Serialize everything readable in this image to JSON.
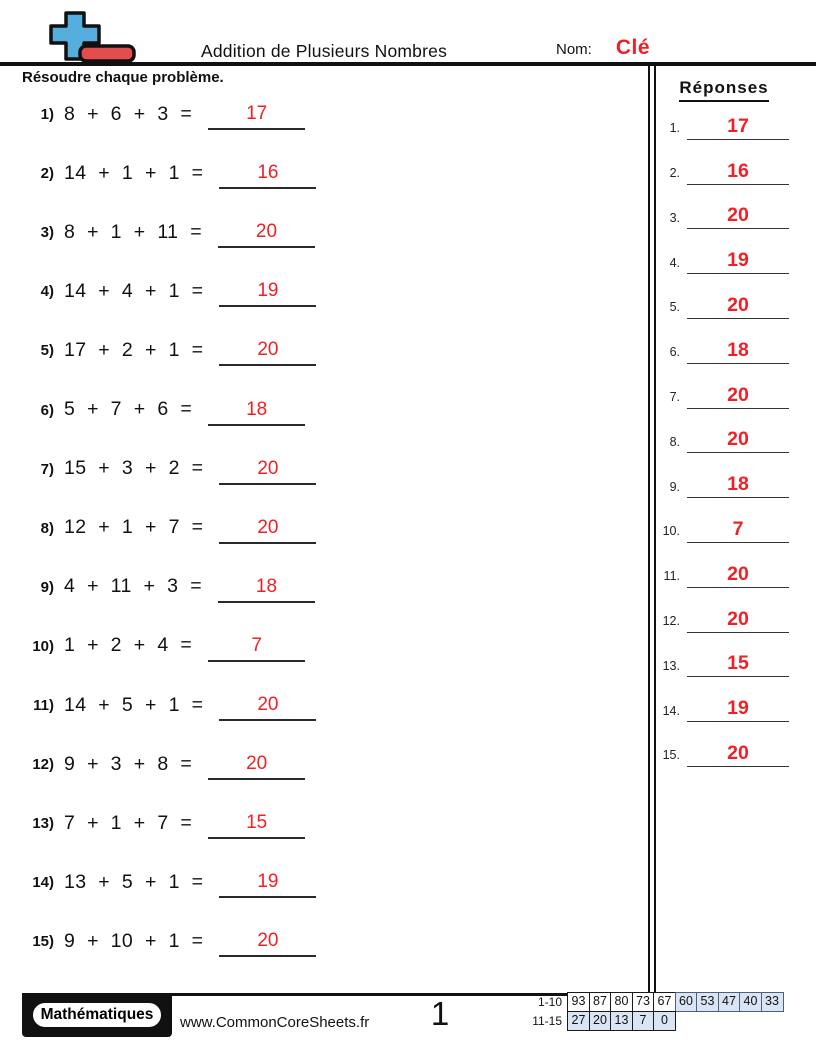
{
  "header": {
    "title": "Addition de Plusieurs Nombres",
    "name_label": "Nom:",
    "name_value": "Clé"
  },
  "instruction": "Résoudre chaque problème.",
  "problems": [
    {
      "num": "1)",
      "expression": "8 + 6 + 3 =",
      "answer": "17"
    },
    {
      "num": "2)",
      "expression": "14 + 1 + 1 =",
      "answer": "16"
    },
    {
      "num": "3)",
      "expression": "8 + 1 + 11 =",
      "answer": "20"
    },
    {
      "num": "4)",
      "expression": "14 + 4 + 1 =",
      "answer": "19"
    },
    {
      "num": "5)",
      "expression": "17 + 2 + 1 =",
      "answer": "20"
    },
    {
      "num": "6)",
      "expression": "5 + 7 + 6 =",
      "answer": "18"
    },
    {
      "num": "7)",
      "expression": "15 + 3 + 2 =",
      "answer": "20"
    },
    {
      "num": "8)",
      "expression": "12 + 1 + 7 =",
      "answer": "20"
    },
    {
      "num": "9)",
      "expression": "4 + 11 + 3 =",
      "answer": "18"
    },
    {
      "num": "10)",
      "expression": "1 + 2 + 4 =",
      "answer": "7"
    },
    {
      "num": "11)",
      "expression": "14 + 5 + 1 =",
      "answer": "20"
    },
    {
      "num": "12)",
      "expression": "9 + 3 + 8 =",
      "answer": "20"
    },
    {
      "num": "13)",
      "expression": "7 + 1 + 7 =",
      "answer": "15"
    },
    {
      "num": "14)",
      "expression": "13 + 5 + 1 =",
      "answer": "19"
    },
    {
      "num": "15)",
      "expression": "9 + 10 + 1 =",
      "answer": "20"
    }
  ],
  "answers_panel": {
    "title": "Réponses",
    "items": [
      {
        "num": "1.",
        "value": "17"
      },
      {
        "num": "2.",
        "value": "16"
      },
      {
        "num": "3.",
        "value": "20"
      },
      {
        "num": "4.",
        "value": "19"
      },
      {
        "num": "5.",
        "value": "20"
      },
      {
        "num": "6.",
        "value": "18"
      },
      {
        "num": "7.",
        "value": "20"
      },
      {
        "num": "8.",
        "value": "20"
      },
      {
        "num": "9.",
        "value": "18"
      },
      {
        "num": "10.",
        "value": "7"
      },
      {
        "num": "11.",
        "value": "20"
      },
      {
        "num": "12.",
        "value": "20"
      },
      {
        "num": "13.",
        "value": "15"
      },
      {
        "num": "14.",
        "value": "19"
      },
      {
        "num": "15.",
        "value": "20"
      }
    ]
  },
  "footer": {
    "badge": "Mathématiques",
    "website": "www.CommonCoreSheets.fr",
    "page_number": "1",
    "score_table": {
      "rows": [
        {
          "label": "1-10",
          "cells": [
            {
              "value": "93",
              "variant": "plain"
            },
            {
              "value": "87",
              "variant": "plain"
            },
            {
              "value": "80",
              "variant": "plain"
            },
            {
              "value": "73",
              "variant": "plain"
            },
            {
              "value": "67",
              "variant": "plain"
            },
            {
              "value": "60",
              "variant": "blue"
            },
            {
              "value": "53",
              "variant": "blue"
            },
            {
              "value": "47",
              "variant": "blue"
            },
            {
              "value": "40",
              "variant": "blue"
            },
            {
              "value": "33",
              "variant": "blue"
            }
          ]
        },
        {
          "label": "11-15",
          "cells": [
            {
              "value": "27",
              "variant": "blue2"
            },
            {
              "value": "20",
              "variant": "blue2"
            },
            {
              "value": "13",
              "variant": "blue2"
            },
            {
              "value": "7",
              "variant": "blue2"
            },
            {
              "value": "0",
              "variant": "blue2"
            }
          ]
        }
      ]
    }
  },
  "icons": {
    "logo": "plus-minus-logo"
  },
  "colors": {
    "answer_red": "#ee2127",
    "logo_blue": "#55aede",
    "logo_red": "#e44d4d",
    "table_highlight": "#d9e4f5"
  }
}
